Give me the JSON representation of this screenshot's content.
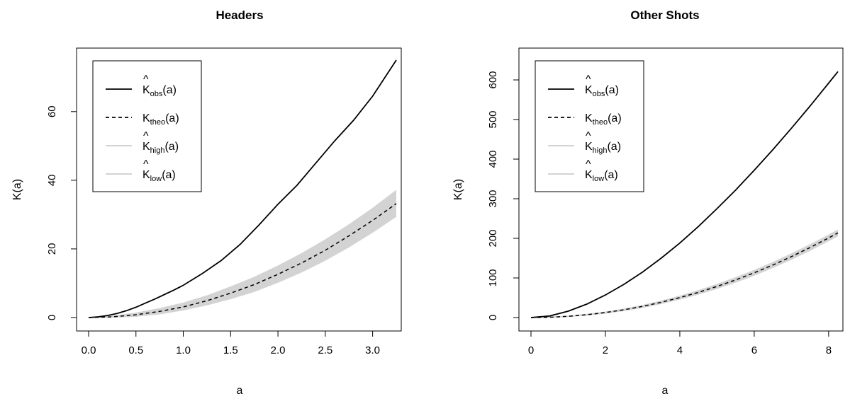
{
  "chart_data": [
    {
      "type": "line",
      "title": "Headers",
      "xlabel": "a",
      "ylabel": "K(a)",
      "xlim": [
        0,
        3.25
      ],
      "ylim": [
        0,
        75
      ],
      "x_ticks": [
        "0.0",
        "0.5",
        "1.0",
        "1.5",
        "2.0",
        "2.5",
        "3.0"
      ],
      "y_ticks": [
        "0",
        "20",
        "40",
        "60"
      ],
      "legend_position": "top-left",
      "legend": [
        {
          "base": "K",
          "hat": true,
          "sub": "obs",
          "suffix": "(a)",
          "style": "solid",
          "color": "#000000"
        },
        {
          "base": "K",
          "hat": false,
          "sub": "theo",
          "suffix": "(a)",
          "style": "dashed",
          "color": "#000000"
        },
        {
          "base": "K",
          "hat": true,
          "sub": "high",
          "suffix": "(a)",
          "style": "solid",
          "color": "#d3d3d3"
        },
        {
          "base": "K",
          "hat": true,
          "sub": "low",
          "suffix": "(a)",
          "style": "solid",
          "color": "#d3d3d3"
        }
      ],
      "series": [
        {
          "key": "obs",
          "x": [
            0,
            0.1,
            0.2,
            0.3,
            0.4,
            0.5,
            0.6,
            0.7,
            0.8,
            0.9,
            1.0,
            1.2,
            1.4,
            1.6,
            1.8,
            2.0,
            2.2,
            2.4,
            2.6,
            2.8,
            3.0,
            3.25
          ],
          "y": [
            0,
            0.2,
            0.6,
            1.2,
            2.0,
            3.0,
            4.2,
            5.4,
            6.7,
            8.0,
            9.4,
            12.8,
            16.6,
            21.3,
            27.0,
            33.0,
            38.5,
            45.0,
            51.5,
            57.5,
            64.5,
            75.0
          ]
        },
        {
          "key": "theo",
          "x": [
            0,
            0.25,
            0.5,
            0.75,
            1.0,
            1.25,
            1.5,
            1.75,
            2.0,
            2.25,
            2.5,
            2.75,
            3.0,
            3.25
          ],
          "y": [
            0,
            0.2,
            0.8,
            1.8,
            3.1,
            4.9,
            7.1,
            9.6,
            12.6,
            15.9,
            19.6,
            23.8,
            28.3,
            33.2
          ]
        },
        {
          "key": "high",
          "x": [
            0,
            0.25,
            0.5,
            0.75,
            1.0,
            1.25,
            1.5,
            1.75,
            2.0,
            2.25,
            2.5,
            2.75,
            3.0,
            3.25
          ],
          "y": [
            0,
            0.4,
            1.3,
            2.6,
            4.2,
            6.3,
            8.9,
            11.7,
            15.0,
            18.6,
            22.6,
            27.0,
            31.8,
            37.0
          ]
        },
        {
          "key": "low",
          "x": [
            0,
            0.25,
            0.5,
            0.75,
            1.0,
            1.25,
            1.5,
            1.75,
            2.0,
            2.25,
            2.5,
            2.75,
            3.0,
            3.25
          ],
          "y": [
            0,
            0.1,
            0.4,
            1.1,
            2.2,
            3.7,
            5.5,
            7.6,
            10.3,
            13.3,
            16.7,
            20.6,
            24.9,
            29.5
          ]
        }
      ]
    },
    {
      "type": "line",
      "title": "Other Shots",
      "xlabel": "a",
      "ylabel": "K(a)",
      "xlim": [
        0,
        8.25
      ],
      "ylim": [
        0,
        650
      ],
      "x_ticks": [
        "0",
        "2",
        "4",
        "6",
        "8"
      ],
      "y_ticks": [
        "0",
        "100",
        "200",
        "300",
        "400",
        "500",
        "600"
      ],
      "legend_position": "top-left",
      "legend": [
        {
          "base": "K",
          "hat": true,
          "sub": "obs",
          "suffix": "(a)",
          "style": "solid",
          "color": "#000000"
        },
        {
          "base": "K",
          "hat": false,
          "sub": "theo",
          "suffix": "(a)",
          "style": "dashed",
          "color": "#000000"
        },
        {
          "base": "K",
          "hat": true,
          "sub": "high",
          "suffix": "(a)",
          "style": "solid",
          "color": "#d3d3d3"
        },
        {
          "base": "K",
          "hat": true,
          "sub": "low",
          "suffix": "(a)",
          "style": "solid",
          "color": "#d3d3d3"
        }
      ],
      "series": [
        {
          "key": "obs",
          "x": [
            0,
            0.5,
            1,
            1.5,
            2,
            2.5,
            3,
            3.5,
            4,
            4.5,
            5,
            5.5,
            6,
            6.5,
            7,
            7.5,
            8,
            8.25
          ],
          "y": [
            0,
            4,
            16,
            34,
            57,
            84,
            115,
            150,
            188,
            230,
            275,
            322,
            372,
            424,
            478,
            534,
            592,
            621
          ]
        },
        {
          "key": "theo",
          "x": [
            0,
            0.5,
            1,
            1.5,
            2,
            2.5,
            3,
            3.5,
            4,
            4.5,
            5,
            5.5,
            6,
            6.5,
            7,
            7.5,
            8,
            8.25
          ],
          "y": [
            0,
            0.8,
            3.1,
            7.1,
            12.6,
            19.6,
            28.3,
            38.5,
            50.3,
            63.6,
            78.5,
            95.0,
            113.1,
            132.7,
            153.9,
            176.7,
            201.1,
            213.8
          ]
        },
        {
          "key": "high",
          "x": [
            0,
            0.5,
            1,
            1.5,
            2,
            2.5,
            3,
            3.5,
            4,
            4.5,
            5,
            5.5,
            6,
            6.5,
            7,
            7.5,
            8,
            8.25
          ],
          "y": [
            0,
            1.0,
            3.6,
            8.0,
            14.0,
            21.5,
            30.8,
            41.6,
            54.0,
            68.0,
            83.5,
            100.5,
            119.0,
            139.0,
            160.5,
            183.5,
            208.0,
            221.0
          ]
        },
        {
          "key": "low",
          "x": [
            0,
            0.5,
            1,
            1.5,
            2,
            2.5,
            3,
            3.5,
            4,
            4.5,
            5,
            5.5,
            6,
            6.5,
            7,
            7.5,
            8,
            8.25
          ],
          "y": [
            0,
            0.6,
            2.6,
            6.2,
            11.2,
            17.7,
            25.8,
            35.4,
            46.6,
            59.2,
            73.5,
            89.5,
            107.2,
            126.4,
            147.3,
            169.9,
            194.2,
            206.6
          ]
        }
      ]
    }
  ]
}
